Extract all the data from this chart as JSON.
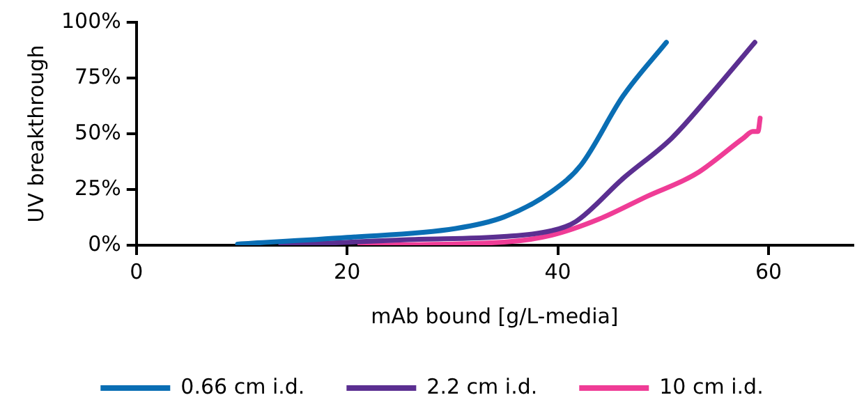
{
  "chart_data": {
    "type": "line",
    "xlabel": "mAb bound [g/L-media]",
    "ylabel": "UV breakthrough",
    "xlim": [
      0,
      68
    ],
    "xticks": [
      0,
      20,
      40,
      60
    ],
    "ylim": [
      0,
      100
    ],
    "yticks": [
      {
        "value": 0,
        "label": "0%"
      },
      {
        "value": 25,
        "label": "25%"
      },
      {
        "value": 50,
        "label": "50%"
      },
      {
        "value": 75,
        "label": "75%"
      },
      {
        "value": 100,
        "label": "100%"
      }
    ],
    "grid": false,
    "legend": "bottom",
    "marker": "none",
    "line_style": "solid",
    "series": [
      {
        "name": "0.66 cm i.d.",
        "color": "#0a6eb4",
        "x": [
          9.6,
          20,
          30.3,
          34.9,
          39.4,
          42.2,
          46.2,
          50.3
        ],
        "values": [
          0.5,
          3.5,
          7.5,
          12.7,
          24,
          36,
          67,
          91
        ]
      },
      {
        "name": "2.2 cm i.d.",
        "color": "#5b2f91",
        "x": [
          13.7,
          25.8,
          34.9,
          39.4,
          41.7,
          46.2,
          50.8,
          54.4,
          58.7
        ],
        "values": [
          0,
          2.5,
          3.9,
          6.5,
          10.6,
          30,
          48,
          67,
          91
        ]
      },
      {
        "name": "10 cm i.d.",
        "color": "#ef3c96",
        "x": [
          21.2,
          34.9,
          39.4,
          43.9,
          48.5,
          53.1,
          57.6,
          58.5,
          59,
          59.2
        ],
        "values": [
          0,
          1.4,
          4.5,
          11.7,
          22,
          32,
          48,
          51,
          51,
          57
        ]
      }
    ]
  }
}
